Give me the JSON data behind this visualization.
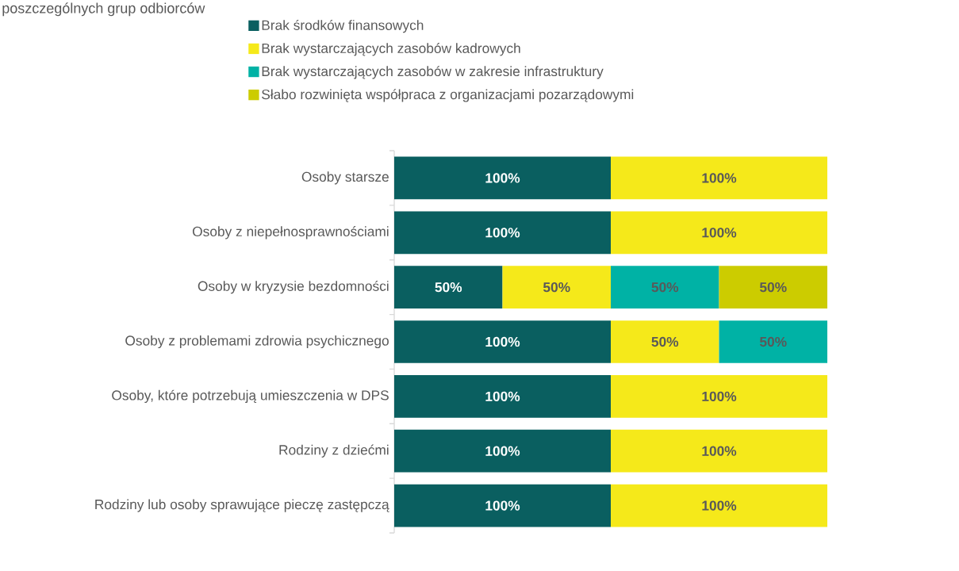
{
  "chart_data": {
    "type": "bar",
    "orientation": "horizontal",
    "stacked": true,
    "title": "poszczególnych grup odbiorców",
    "categories": [
      "Osoby starsze",
      "Osoby z niepełnosprawnościami",
      "Osoby w kryzysie bezdomności",
      "Osoby z problemami zdrowia psychicznego",
      "Osoby, które potrzebują umieszczenia w DPS",
      "Rodziny z dziećmi",
      "Rodziny lub osoby sprawujące pieczę zastępczą"
    ],
    "series": [
      {
        "name": "Brak środków finansowych",
        "color": "#0a5f60",
        "values": [
          100,
          100,
          50,
          100,
          100,
          100,
          100
        ],
        "value_labels": [
          "100%",
          "100%",
          "50%",
          "100%",
          "100%",
          "100%",
          "100%"
        ]
      },
      {
        "name": "Brak wystarczających zasobów kadrowych",
        "color": "#f5e91a",
        "values": [
          100,
          100,
          50,
          50,
          100,
          100,
          100
        ],
        "value_labels": [
          "100%",
          "100%",
          "50%",
          "50%",
          "100%",
          "100%",
          "100%"
        ]
      },
      {
        "name": "Brak wystarczających zasobów w zakresie infrastruktury",
        "color": "#00b2a5",
        "values": [
          null,
          null,
          50,
          50,
          null,
          null,
          null
        ],
        "value_labels": [
          null,
          null,
          "50%",
          "50%",
          null,
          null,
          null
        ]
      },
      {
        "name": "Słabo rozwinięta współpraca z organizacjami pozarządowymi",
        "color": "#cccc00",
        "values": [
          null,
          null,
          50,
          null,
          null,
          null,
          null
        ],
        "value_labels": [
          null,
          null,
          "50%",
          null,
          null,
          null,
          null
        ]
      }
    ],
    "legend": "top"
  }
}
